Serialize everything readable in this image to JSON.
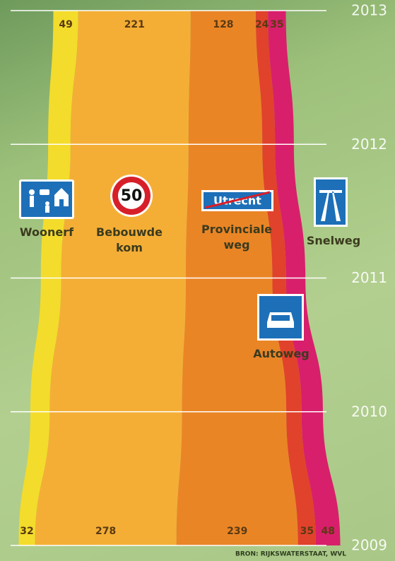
{
  "chart_data": {
    "type": "stream",
    "x": [
      2009,
      2010,
      2011,
      2012,
      2013
    ],
    "ylim": [
      2009,
      2013
    ],
    "yticks": [
      2009,
      2010,
      2011,
      2012,
      2013
    ],
    "grid": true,
    "series": [
      {
        "name": "Woonerf",
        "color": "#f3dc2b",
        "values": [
          32,
          38,
          40,
          44,
          49
        ]
      },
      {
        "name": "Bebouwde kom",
        "color": "#f4ae36",
        "values": [
          278,
          260,
          245,
          232,
          221
        ]
      },
      {
        "name": "Provinciale weg",
        "color": "#ea8526",
        "values": [
          239,
          205,
          170,
          145,
          128
        ]
      },
      {
        "name": "Autoweg",
        "color": "#e1422b",
        "values": [
          35,
          30,
          27,
          25,
          24
        ]
      },
      {
        "name": "Snelweg",
        "color": "#d81f6b",
        "values": [
          48,
          42,
          38,
          37,
          35
        ]
      }
    ],
    "annotations": [
      "50",
      "Utrecht"
    ],
    "source": "BRON: RIJKSWATERSTAAT, WVL"
  }
}
